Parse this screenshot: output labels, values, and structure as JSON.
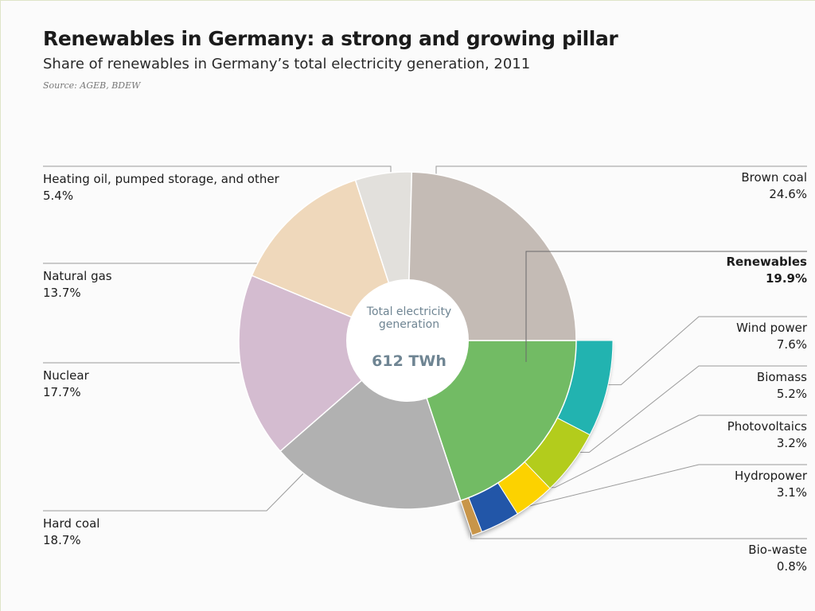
{
  "header": {
    "title": "Renewables in Germany: a strong and growing pillar",
    "subtitle": "Share of renewables in Germany’s total electricity generation, 2011",
    "source": "Source: AGEB, BDEW"
  },
  "center": {
    "label": "Total electricity generation",
    "value": "612 TWh"
  },
  "labels": {
    "heating_oil": {
      "name": "Heating oil, pumped storage, and other",
      "value": "5.4%"
    },
    "natural_gas": {
      "name": "Natural gas",
      "value": "13.7%"
    },
    "nuclear": {
      "name": "Nuclear",
      "value": "17.7%"
    },
    "hard_coal": {
      "name": "Hard coal",
      "value": "18.7%"
    },
    "brown_coal": {
      "name": "Brown coal",
      "value": "24.6%"
    },
    "renewables": {
      "name": "Renewables",
      "value": "19.9%"
    },
    "wind": {
      "name": "Wind power",
      "value": "7.6%"
    },
    "biomass": {
      "name": "Biomass",
      "value": "5.2%"
    },
    "photovoltaics": {
      "name": "Photovoltaics",
      "value": "3.2%"
    },
    "hydropower": {
      "name": "Hydropower",
      "value": "3.1%"
    },
    "biowaste": {
      "name": "Bio-waste",
      "value": "0.8%"
    }
  },
  "chart_data": {
    "type": "pie",
    "title": "Renewables in Germany: a strong and growing pillar",
    "subtitle": "Share of renewables in Germany’s total electricity generation, 2011",
    "total": "612 TWh",
    "unit": "%",
    "slices": [
      {
        "name": "Brown coal",
        "value": 24.6,
        "color": "#c4bbb5"
      },
      {
        "name": "Renewables",
        "value": 19.9,
        "color": "#72bb64"
      },
      {
        "name": "Hard coal",
        "value": 18.7,
        "color": "#b1b1b1"
      },
      {
        "name": "Nuclear",
        "value": 17.7,
        "color": "#d4bcd0"
      },
      {
        "name": "Natural gas",
        "value": 13.7,
        "color": "#efd8bb"
      },
      {
        "name": "Heating oil, pumped storage, and other",
        "value": 5.4,
        "color": "#e2e0dc"
      }
    ],
    "renewables_breakdown": [
      {
        "name": "Wind power",
        "value": 7.6,
        "color": "#22b3b0"
      },
      {
        "name": "Biomass",
        "value": 5.2,
        "color": "#b3cc1f"
      },
      {
        "name": "Photovoltaics",
        "value": 3.2,
        "color": "#fcd200"
      },
      {
        "name": "Hydropower",
        "value": 3.1,
        "color": "#2356a8"
      },
      {
        "name": "Bio-waste",
        "value": 0.8,
        "color": "#c8954a"
      }
    ]
  }
}
